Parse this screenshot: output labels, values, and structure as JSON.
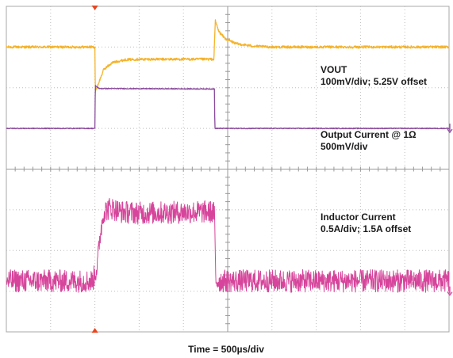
{
  "chart_data": {
    "type": "line",
    "xlabel": "Time = 500µs/div",
    "grid": true,
    "divisions": {
      "x": 10,
      "y": 8
    },
    "events": {
      "load_step_up_div": 2.0,
      "load_step_down_div": 4.7
    },
    "series": [
      {
        "id": "vout",
        "color": "#f5b32a",
        "label_line1": "VOUT",
        "label_line2": "100mV/div; 5.25V offset",
        "points_div": [
          [
            0,
            7.0
          ],
          [
            1.9,
            7.0
          ],
          [
            2.0,
            7.0
          ],
          [
            2.01,
            5.9
          ],
          [
            2.08,
            6.1
          ],
          [
            2.2,
            6.45
          ],
          [
            2.4,
            6.62
          ],
          [
            2.7,
            6.69
          ],
          [
            3.0,
            6.7
          ],
          [
            4.69,
            6.7
          ],
          [
            4.7,
            7.05
          ],
          [
            4.72,
            7.65
          ],
          [
            4.8,
            7.38
          ],
          [
            4.95,
            7.2
          ],
          [
            5.2,
            7.08
          ],
          [
            5.6,
            7.02
          ],
          [
            6.0,
            7.0
          ],
          [
            10,
            7.0
          ]
        ]
      },
      {
        "id": "output_current",
        "color": "#8a4a9c",
        "label_line1": "Output Current @ 1Ω",
        "label_line2": "500mV/div",
        "points_div": [
          [
            0,
            5.0
          ],
          [
            2.0,
            5.0
          ],
          [
            2.01,
            6.05
          ],
          [
            2.1,
            5.98
          ],
          [
            4.7,
            5.97
          ],
          [
            4.71,
            5.0
          ],
          [
            10,
            5.0
          ]
        ]
      },
      {
        "id": "inductor_current",
        "color": "#d6459b",
        "label_line1": "Inductor Current",
        "label_line2": "0.5A/div; 1.5A offset",
        "points_div": [
          [
            0,
            1.25
          ],
          [
            1.95,
            1.25
          ],
          [
            2.05,
            1.6
          ],
          [
            2.12,
            2.4
          ],
          [
            2.2,
            2.95
          ],
          [
            2.35,
            3.05
          ],
          [
            2.6,
            2.95
          ],
          [
            3.0,
            2.92
          ],
          [
            4.6,
            2.95
          ],
          [
            4.7,
            2.92
          ],
          [
            4.73,
            1.25
          ],
          [
            10,
            1.25
          ]
        ]
      }
    ],
    "ground_markers": [
      {
        "series": "output_current",
        "level_div": 5.0
      },
      {
        "series": "inductor_current",
        "level_div": 1.0
      }
    ],
    "trigger_marker_div": 2.0
  }
}
